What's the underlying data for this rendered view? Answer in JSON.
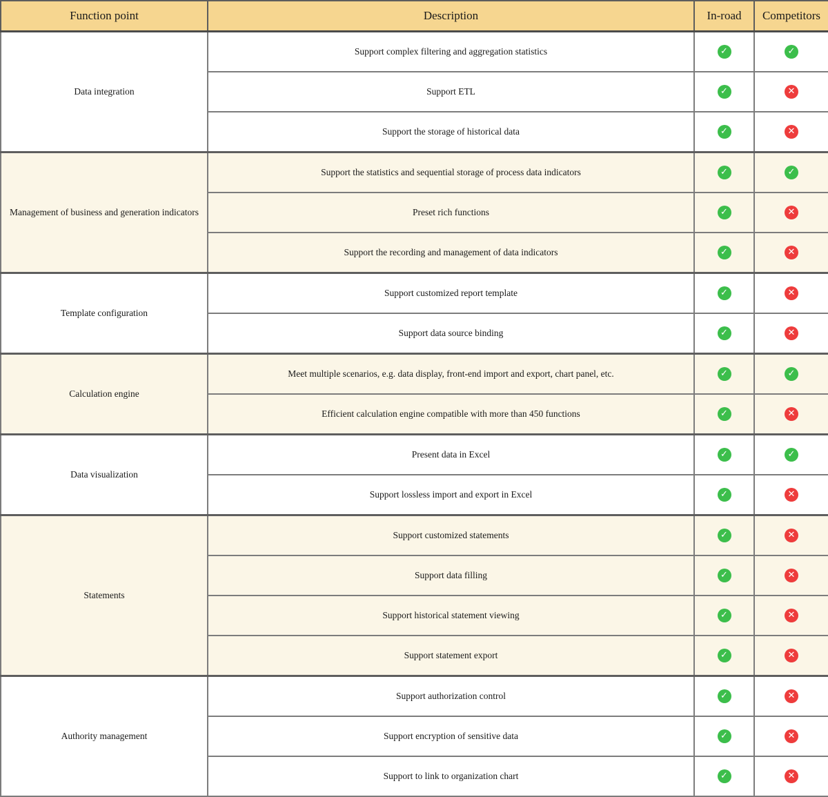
{
  "header": {
    "function_point": "Function point",
    "description": "Description",
    "inroad": "In-road",
    "competitors": "Competitors"
  },
  "colors": {
    "header_bg": "#F6D690",
    "row_cream": "#FBF6E7",
    "row_white": "#FFFFFF",
    "check_green": "#3CBE4B",
    "cross_red": "#EE3C3C",
    "border_gray": "#7C7C7C"
  },
  "icons": {
    "check": {
      "name": "check-icon",
      "glyph": "✓",
      "color": "#3CBE4B"
    },
    "cross": {
      "name": "cross-icon",
      "glyph": "✕",
      "color": "#EE3C3C"
    }
  },
  "groups": [
    {
      "function_point": "Data integration",
      "rows": [
        {
          "description": "Support complex filtering and aggregation statistics",
          "inroad": "check",
          "competitors": "check"
        },
        {
          "description": "Support ETL",
          "inroad": "check",
          "competitors": "cross"
        },
        {
          "description": "Support the storage of historical data",
          "inroad": "check",
          "competitors": "cross"
        }
      ]
    },
    {
      "function_point": "Management of business and generation indicators",
      "rows": [
        {
          "description": "Support the statistics and sequential storage of process data indicators",
          "inroad": "check",
          "competitors": "check"
        },
        {
          "description": "Preset rich functions",
          "inroad": "check",
          "competitors": "cross"
        },
        {
          "description": "Support the recording and management of data indicators",
          "inroad": "check",
          "competitors": "cross"
        }
      ]
    },
    {
      "function_point": "Template configuration",
      "rows": [
        {
          "description": "Support customized report template",
          "inroad": "check",
          "competitors": "cross"
        },
        {
          "description": "Support data source binding",
          "inroad": "check",
          "competitors": "cross"
        }
      ]
    },
    {
      "function_point": "Calculation engine",
      "rows": [
        {
          "description": "Meet multiple scenarios, e.g. data display, front-end import and export, chart panel, etc.",
          "inroad": "check",
          "competitors": "check"
        },
        {
          "description": "Efficient calculation engine compatible with more than 450 functions",
          "inroad": "check",
          "competitors": "cross"
        }
      ]
    },
    {
      "function_point": "Data visualization",
      "rows": [
        {
          "description": "Present data in Excel",
          "inroad": "check",
          "competitors": "check"
        },
        {
          "description": "Support lossless import and export in Excel",
          "inroad": "check",
          "competitors": "cross"
        }
      ]
    },
    {
      "function_point": "Statements",
      "rows": [
        {
          "description": "Support customized statements",
          "inroad": "check",
          "competitors": "cross"
        },
        {
          "description": "Support data filling",
          "inroad": "check",
          "competitors": "cross"
        },
        {
          "description": "Support historical statement viewing",
          "inroad": "check",
          "competitors": "cross"
        },
        {
          "description": "Support statement export",
          "inroad": "check",
          "competitors": "cross"
        }
      ]
    },
    {
      "function_point": "Authority management",
      "rows": [
        {
          "description": "Support authorization control",
          "inroad": "check",
          "competitors": "cross"
        },
        {
          "description": "Support encryption of sensitive data",
          "inroad": "check",
          "competitors": "cross"
        },
        {
          "description": "Support to link to organization chart",
          "inroad": "check",
          "competitors": "cross"
        }
      ]
    }
  ],
  "chart_data": {
    "type": "table",
    "title": "",
    "columns": [
      "Function point",
      "Description",
      "In-road",
      "Competitors"
    ],
    "rows": [
      [
        "Data integration",
        "Support complex filtering and aggregation statistics",
        "yes",
        "yes"
      ],
      [
        "Data integration",
        "Support ETL",
        "yes",
        "no"
      ],
      [
        "Data integration",
        "Support the storage of historical data",
        "yes",
        "no"
      ],
      [
        "Management of business and generation indicators",
        "Support the statistics and sequential storage of process data indicators",
        "yes",
        "yes"
      ],
      [
        "Management of business and generation indicators",
        "Preset rich functions",
        "yes",
        "no"
      ],
      [
        "Management of business and generation indicators",
        "Support the recording and management of data indicators",
        "yes",
        "no"
      ],
      [
        "Template configuration",
        "Support customized report template",
        "yes",
        "no"
      ],
      [
        "Template configuration",
        "Support data source binding",
        "yes",
        "no"
      ],
      [
        "Calculation engine",
        "Meet multiple scenarios, e.g. data display, front-end import and export, chart panel, etc.",
        "yes",
        "yes"
      ],
      [
        "Calculation engine",
        "Efficient calculation engine compatible with more than 450 functions",
        "yes",
        "no"
      ],
      [
        "Data visualization",
        "Present data in Excel",
        "yes",
        "yes"
      ],
      [
        "Data visualization",
        "Support lossless import and export in Excel",
        "yes",
        "no"
      ],
      [
        "Statements",
        "Support customized statements",
        "yes",
        "no"
      ],
      [
        "Statements",
        "Support data filling",
        "yes",
        "no"
      ],
      [
        "Statements",
        "Support historical statement viewing",
        "yes",
        "no"
      ],
      [
        "Statements",
        "Support statement export",
        "yes",
        "no"
      ],
      [
        "Authority management",
        "Support authorization control",
        "yes",
        "no"
      ],
      [
        "Authority management",
        "Support encryption of sensitive data",
        "yes",
        "no"
      ],
      [
        "Authority management",
        "Support to link to organization chart",
        "yes",
        "no"
      ]
    ]
  }
}
